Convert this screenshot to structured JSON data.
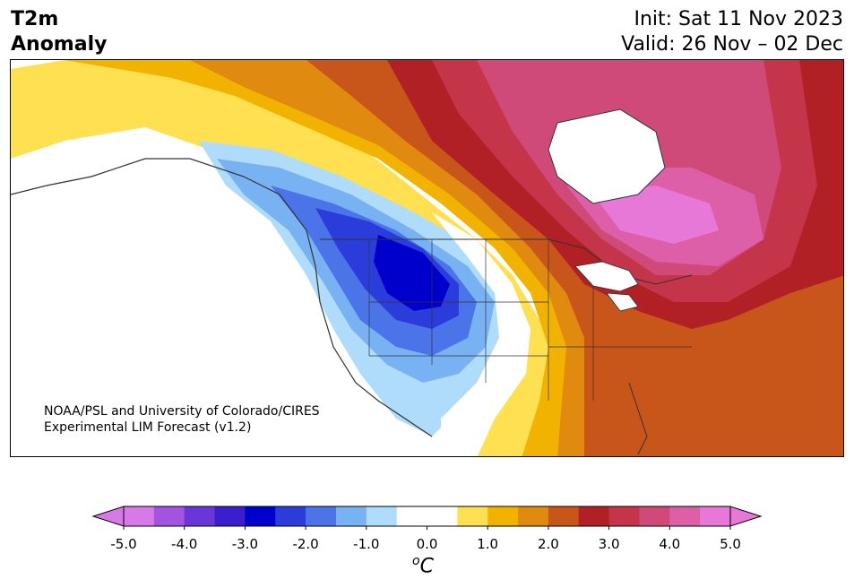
{
  "header": {
    "title_line1": "T2m",
    "title_line2": "Anomaly",
    "init_text": "Init: Sat 11 Nov 2023",
    "valid_text": "Valid: 26 Nov – 02 Dec"
  },
  "map": {
    "region": "North America",
    "credit_line1": "NOAA/PSL and University of Colorado/CIRES",
    "credit_line2": "Experimental LIM Forecast (v1.2)"
  },
  "colorbar": {
    "unit_base": "C",
    "unit_prefix": "o",
    "min": -5.0,
    "max": 5.0,
    "step": 0.5,
    "tick_labels": [
      "-5.0",
      "-4.0",
      "-3.0",
      "-2.0",
      "-1.0",
      "0.0",
      "1.0",
      "2.0",
      "3.0",
      "4.0",
      "5.0"
    ],
    "tick_values": [
      -5,
      -4,
      -3,
      -2,
      -1,
      0,
      1,
      2,
      3,
      4,
      5
    ],
    "colors": [
      "#d77ae8",
      "#a452e0",
      "#6a36d8",
      "#3b1fcf",
      "#0000cc",
      "#2a3ddb",
      "#4a74e8",
      "#78b2f2",
      "#aedcfa",
      "#ffffff",
      "#ffffff",
      "#ffe050",
      "#f2b300",
      "#e08a10",
      "#c8561a",
      "#b12025",
      "#c4354a",
      "#cf4a78",
      "#dc5fa8",
      "#e878d8"
    ],
    "extend_low_color": "#d77ae8",
    "extend_high_color": "#e878d8"
  }
}
